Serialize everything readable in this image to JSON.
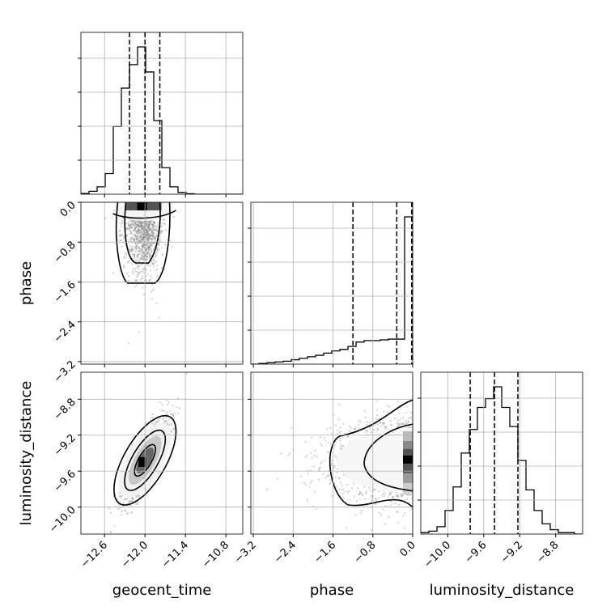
{
  "chart_data": {
    "type": "corner",
    "parameters": [
      "geocent_time",
      "phase",
      "luminosity_distance"
    ],
    "axis_labels": {
      "x": [
        "geocent_time",
        "phase",
        "luminosity_distance"
      ],
      "y": [
        "",
        "phase",
        "luminosity_distance"
      ]
    },
    "ticks": {
      "geocent_time": [
        "−12.6",
        "−12.0",
        "−11.4",
        "−10.8"
      ],
      "phase": [
        "−3.2",
        "−2.4",
        "−1.6",
        "−0.8",
        "0.0"
      ],
      "luminosity_distance": [
        "−10.0",
        "−9.6",
        "−9.2",
        "−8.8"
      ]
    },
    "ranges": {
      "geocent_time": [
        -12.95,
        -10.55
      ],
      "phase": [
        -3.25,
        0.0
      ],
      "luminosity_distance": [
        -10.3,
        -8.5
      ]
    },
    "grid": true,
    "quantile_lines": {
      "geocent_time": [
        -12.23,
        -12.0,
        -11.78
      ],
      "phase": [
        -1.2,
        -0.32,
        -0.02
      ],
      "luminosity_distance": [
        -9.75,
        -9.48,
        -9.22
      ]
    },
    "histograms": {
      "geocent_time": {
        "edges": [
          -12.95,
          -12.83,
          -12.71,
          -12.59,
          -12.47,
          -12.35,
          -12.23,
          -12.11,
          -11.99,
          -11.87,
          -11.75,
          -11.63,
          -11.51,
          -11.39,
          -11.27,
          -11.15,
          -11.03,
          -10.91,
          -10.79,
          -10.67,
          -10.55
        ],
        "counts": [
          0.005,
          0.02,
          0.05,
          0.14,
          0.46,
          0.72,
          0.88,
          1.0,
          0.83,
          0.5,
          0.18,
          0.05,
          0.012,
          0.003,
          0,
          0,
          0,
          0,
          0,
          0
        ]
      },
      "phase": {
        "edges": [
          -3.25,
          -3.0875,
          -2.925,
          -2.7625,
          -2.6,
          -2.4375,
          -2.275,
          -2.1125,
          -1.95,
          -1.7875,
          -1.625,
          -1.4625,
          -1.3,
          -1.1375,
          -0.975,
          -0.8125,
          -0.65,
          -0.4875,
          -0.325,
          -0.1625,
          0.0
        ],
        "counts": [
          0.0,
          0.005,
          0.01,
          0.015,
          0.02,
          0.03,
          0.04,
          0.05,
          0.06,
          0.075,
          0.09,
          0.1,
          0.12,
          0.15,
          0.16,
          0.16,
          0.165,
          0.17,
          0.17,
          1.0
        ]
      },
      "luminosity_distance": {
        "edges": [
          -10.3,
          -10.21,
          -10.12,
          -10.03,
          -9.94,
          -9.85,
          -9.76,
          -9.67,
          -9.58,
          -9.49,
          -9.4,
          -9.31,
          -9.22,
          -9.13,
          -9.04,
          -8.95,
          -8.86,
          -8.77,
          -8.68,
          -8.59,
          -8.5
        ],
        "counts": [
          0.01,
          0.02,
          0.05,
          0.16,
          0.32,
          0.55,
          0.71,
          0.86,
          0.92,
          1.0,
          0.86,
          0.73,
          0.5,
          0.3,
          0.16,
          0.07,
          0.03,
          0.01,
          0.01,
          0
        ]
      }
    },
    "joint_distributions": [
      {
        "x": "geocent_time",
        "y": "phase",
        "x_mean": -12.02,
        "x_sd": 0.14,
        "y_mode": 0.0,
        "y_scale": 0.9,
        "correlation": 0.0,
        "contour_levels": 2
      },
      {
        "x": "geocent_time",
        "y": "luminosity_distance",
        "x_mean": -12.0,
        "x_sd": 0.17,
        "y_mean": -9.48,
        "y_sd": 0.23,
        "correlation": 0.8,
        "contour_levels": 3
      },
      {
        "x": "phase",
        "y": "luminosity_distance",
        "x_mode": 0.0,
        "x_scale": 0.9,
        "y_mean": -9.48,
        "y_sd": 0.22,
        "correlation": 0.0,
        "contour_levels": 2
      }
    ]
  }
}
